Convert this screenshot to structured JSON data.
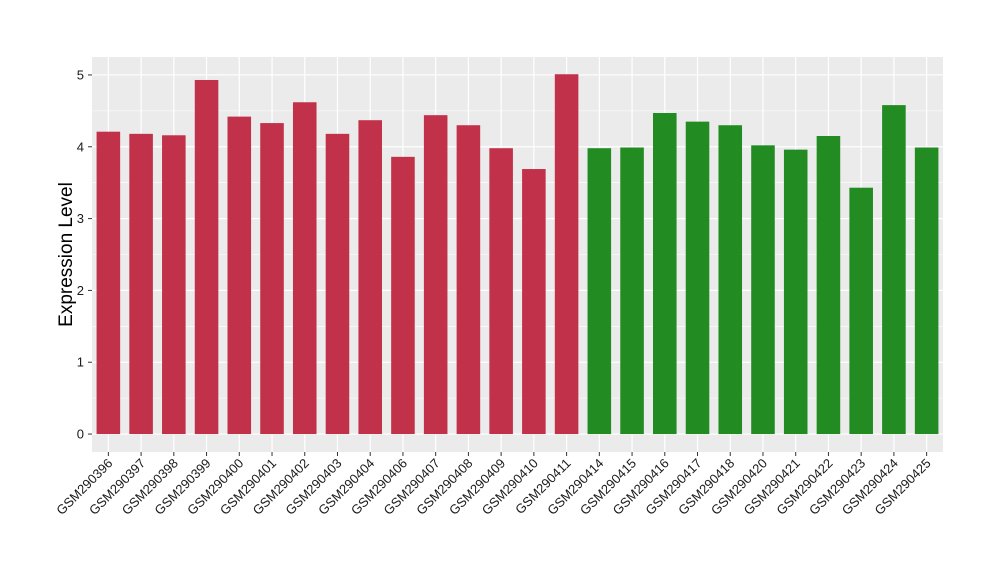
{
  "chart_data": {
    "type": "bar",
    "title": "",
    "xlabel": "",
    "ylabel": "Expression Level",
    "ylim": [
      -0.25,
      5.25
    ],
    "yticks": [
      0,
      1,
      2,
      3,
      4,
      5
    ],
    "grid": true,
    "legend": "none",
    "categories": [
      "GSM290396",
      "GSM290397",
      "GSM290398",
      "GSM290399",
      "GSM290400",
      "GSM290401",
      "GSM290402",
      "GSM290403",
      "GSM290404",
      "GSM290406",
      "GSM290407",
      "GSM290408",
      "GSM290409",
      "GSM290410",
      "GSM290411",
      "GSM290414",
      "GSM290415",
      "GSM290416",
      "GSM290417",
      "GSM290418",
      "GSM290420",
      "GSM290421",
      "GSM290422",
      "GSM290423",
      "GSM290424",
      "GSM290425"
    ],
    "values": [
      4.21,
      4.18,
      4.16,
      4.93,
      4.42,
      4.33,
      4.62,
      4.18,
      4.37,
      3.86,
      4.44,
      4.3,
      3.98,
      3.69,
      5.01,
      3.98,
      3.99,
      4.47,
      4.35,
      4.3,
      4.02,
      3.96,
      4.15,
      3.43,
      4.58,
      3.99
    ],
    "groups": [
      0,
      0,
      0,
      0,
      0,
      0,
      0,
      0,
      0,
      0,
      0,
      0,
      0,
      0,
      0,
      1,
      1,
      1,
      1,
      1,
      1,
      1,
      1,
      1,
      1,
      1
    ],
    "colors": {
      "group_1": "#c2314a",
      "group_2": "#228b22",
      "panel": "#ebebeb",
      "grid": "#ffffff"
    }
  }
}
